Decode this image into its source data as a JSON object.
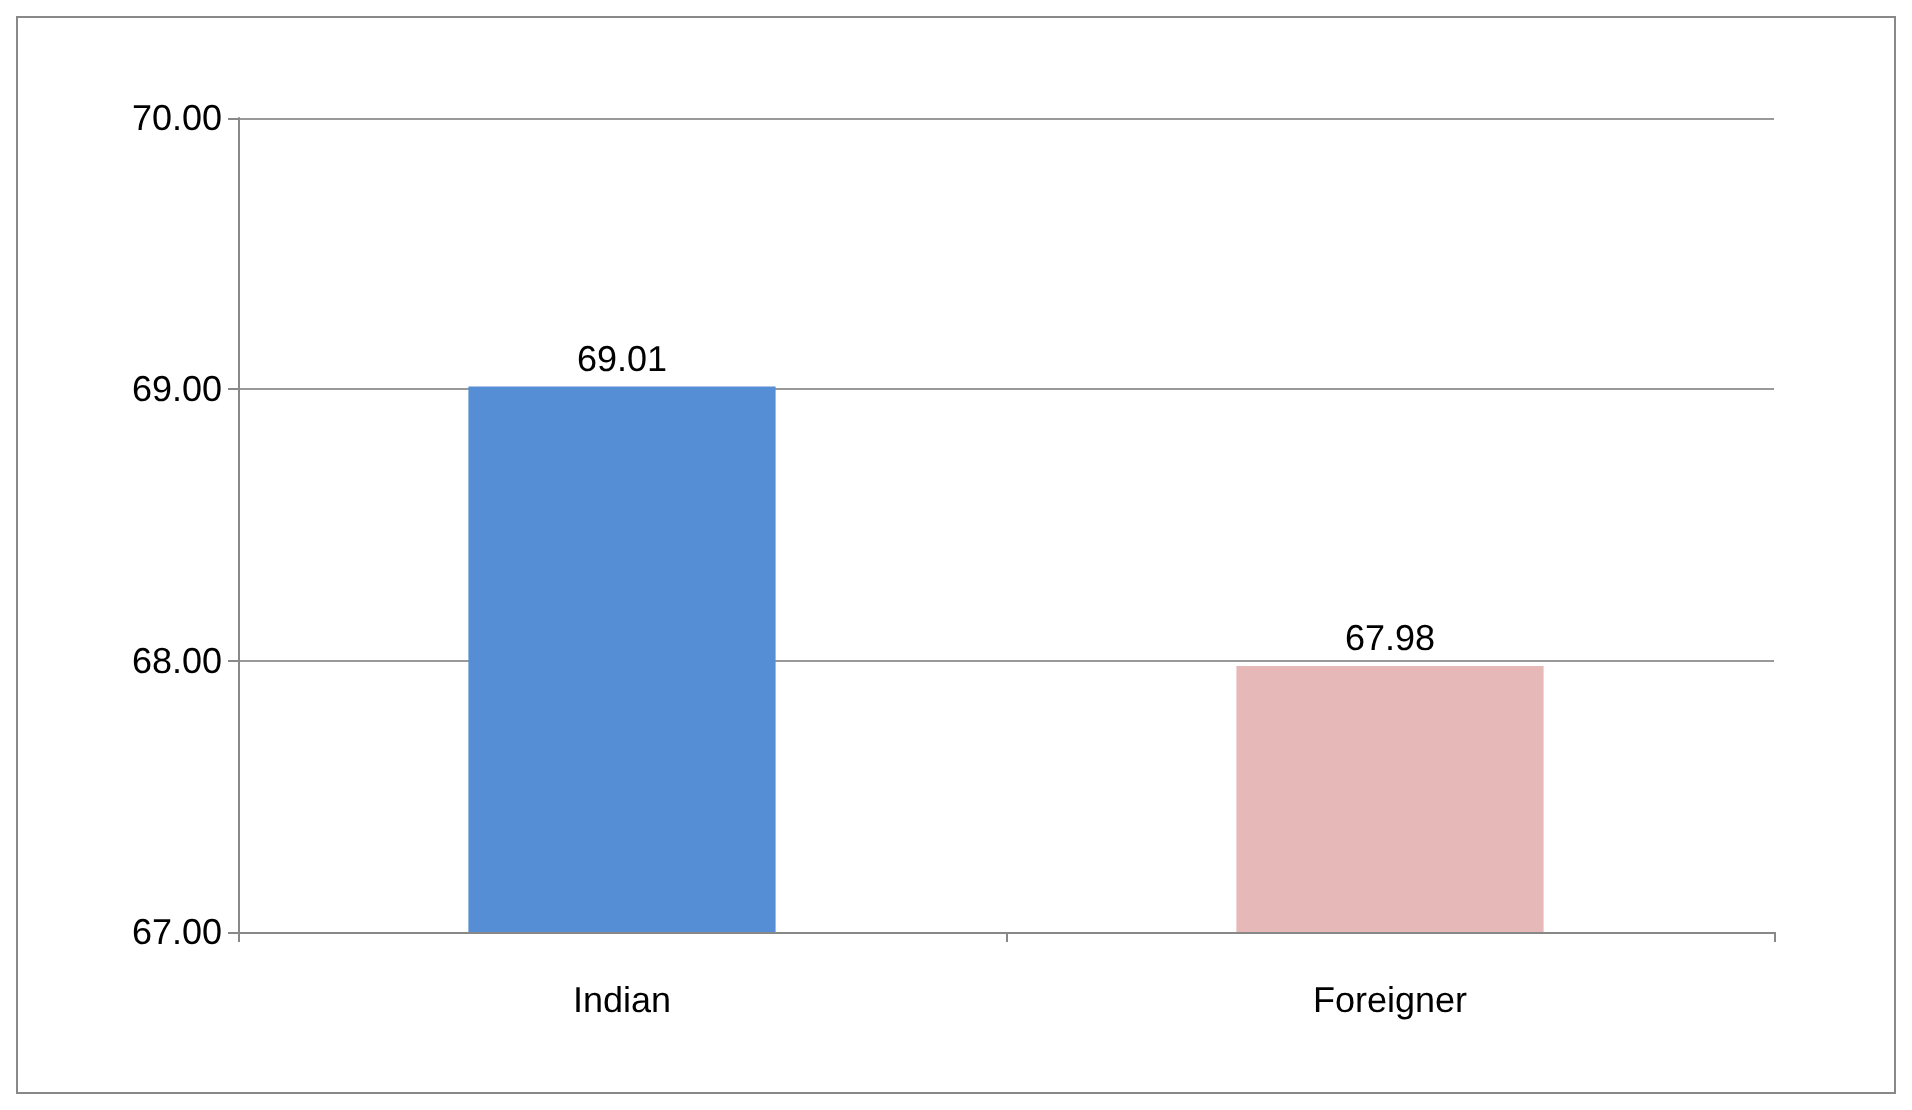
{
  "chart_data": {
    "type": "bar",
    "categories": [
      "Indian",
      "Foreigner"
    ],
    "values": [
      69.01,
      67.98
    ],
    "colors": [
      "#558ed5",
      "#e6b9b8"
    ],
    "ylim": [
      67,
      70
    ],
    "yticks": [
      {
        "value": 67,
        "label": "67.00"
      },
      {
        "value": 68,
        "label": "68.00"
      },
      {
        "value": 69,
        "label": "69.00"
      },
      {
        "value": 70,
        "label": "70.00"
      }
    ],
    "grid": "y",
    "data_labels": true
  }
}
